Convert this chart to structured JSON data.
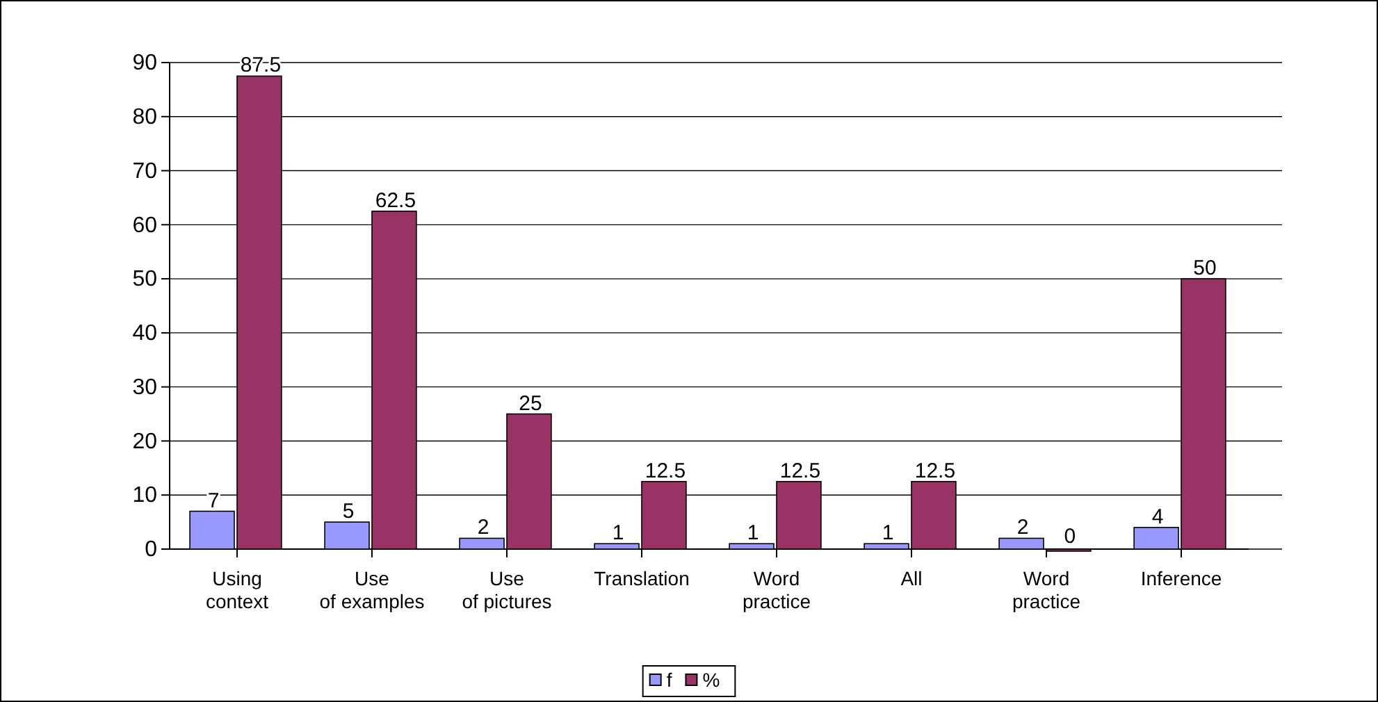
{
  "chart_data": {
    "type": "bar",
    "categories": [
      "Using context",
      "Use of examples",
      "Use of pictures",
      "Translation",
      "Word practice",
      "All",
      "Word practice",
      "Inference"
    ],
    "series": [
      {
        "name": "f",
        "color": "#9999ff",
        "values": [
          7,
          5,
          2,
          1,
          1,
          1,
          2,
          4
        ]
      },
      {
        "name": "%",
        "color": "#993366",
        "values": [
          87.5,
          62.5,
          25,
          12.5,
          12.5,
          12.5,
          0,
          50
        ]
      }
    ],
    "ylim": [
      0,
      90
    ],
    "yticks": [
      0,
      10,
      20,
      30,
      40,
      50,
      60,
      70,
      80,
      90
    ],
    "grid": "y",
    "legend": "bottom",
    "data_labels": true
  }
}
